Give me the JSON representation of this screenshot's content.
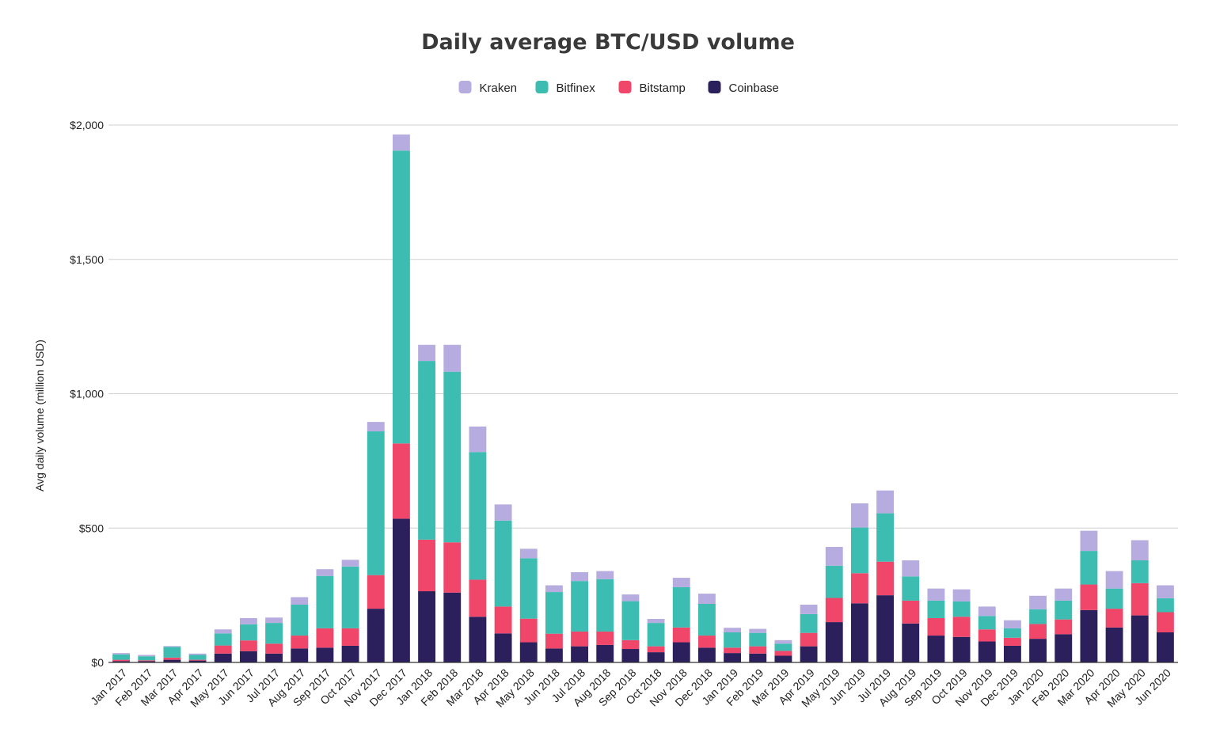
{
  "chart_data": {
    "type": "bar",
    "stacked": true,
    "title": "Daily average BTC/USD volume",
    "xlabel": "",
    "ylabel": "Avg daily volume (million USD)",
    "ylim": [
      0,
      2000
    ],
    "yticks": [
      0,
      500,
      1000,
      1500,
      2000
    ],
    "ytick_labels": [
      "$0",
      "$500",
      "$1,000",
      "$1,500",
      "$2,000"
    ],
    "grid": true,
    "legend_position": "top-center",
    "categories": [
      "Jan 2017",
      "Feb 2017",
      "Mar 2017",
      "Apr 2017",
      "May 2017",
      "Jun 2017",
      "Jul 2017",
      "Aug 2017",
      "Sep 2017",
      "Oct 2017",
      "Nov 2017",
      "Dec 2017",
      "Jan 2018",
      "Feb 2018",
      "Mar 2018",
      "Apr 2018",
      "May 2018",
      "Jun 2018",
      "Jul 2018",
      "Aug 2018",
      "Sep 2018",
      "Oct 2018",
      "Nov 2018",
      "Dec 2018",
      "Jan 2019",
      "Feb 2019",
      "Mar 2019",
      "Apr 2019",
      "May 2019",
      "Jun 2019",
      "Jul 2019",
      "Aug 2019",
      "Sep 2019",
      "Oct 2019",
      "Nov 2019",
      "Dec 2019",
      "Jan 2020",
      "Feb 2020",
      "Mar 2020",
      "Apr 2020",
      "May 2020",
      "Jun 2020"
    ],
    "series": [
      {
        "name": "Coinbase",
        "color": "#2b1f5c",
        "values": [
          5,
          5,
          10,
          7,
          33,
          42,
          33,
          52,
          55,
          62,
          200,
          535,
          265,
          260,
          170,
          108,
          75,
          52,
          60,
          65,
          50,
          38,
          75,
          55,
          35,
          33,
          25,
          60,
          150,
          220,
          250,
          145,
          100,
          95,
          78,
          62,
          88,
          105,
          195,
          130,
          175,
          112
        ]
      },
      {
        "name": "Bitstamp",
        "color": "#f0466a",
        "values": [
          5,
          3,
          8,
          3,
          30,
          40,
          37,
          48,
          72,
          65,
          125,
          280,
          192,
          187,
          138,
          100,
          88,
          55,
          55,
          50,
          33,
          22,
          55,
          45,
          20,
          27,
          18,
          50,
          90,
          112,
          125,
          85,
          65,
          75,
          45,
          30,
          55,
          55,
          95,
          70,
          120,
          75
        ]
      },
      {
        "name": "Bitfinex",
        "color": "#3dbdb1",
        "values": [
          20,
          15,
          40,
          18,
          45,
          60,
          77,
          115,
          195,
          230,
          535,
          1090,
          665,
          635,
          475,
          320,
          225,
          155,
          188,
          195,
          145,
          87,
          150,
          118,
          57,
          50,
          27,
          70,
          120,
          170,
          180,
          90,
          65,
          57,
          50,
          35,
          55,
          70,
          125,
          75,
          85,
          52
        ]
      },
      {
        "name": "Kraken",
        "color": "#b7acdf",
        "values": [
          5,
          5,
          3,
          5,
          15,
          23,
          20,
          28,
          25,
          25,
          35,
          60,
          60,
          100,
          95,
          60,
          35,
          25,
          33,
          30,
          25,
          15,
          35,
          38,
          17,
          15,
          13,
          35,
          70,
          90,
          85,
          60,
          45,
          45,
          35,
          30,
          50,
          45,
          75,
          65,
          75,
          48
        ]
      }
    ],
    "legend": [
      "Kraken",
      "Bitfinex",
      "Bitstamp",
      "Coinbase"
    ]
  }
}
